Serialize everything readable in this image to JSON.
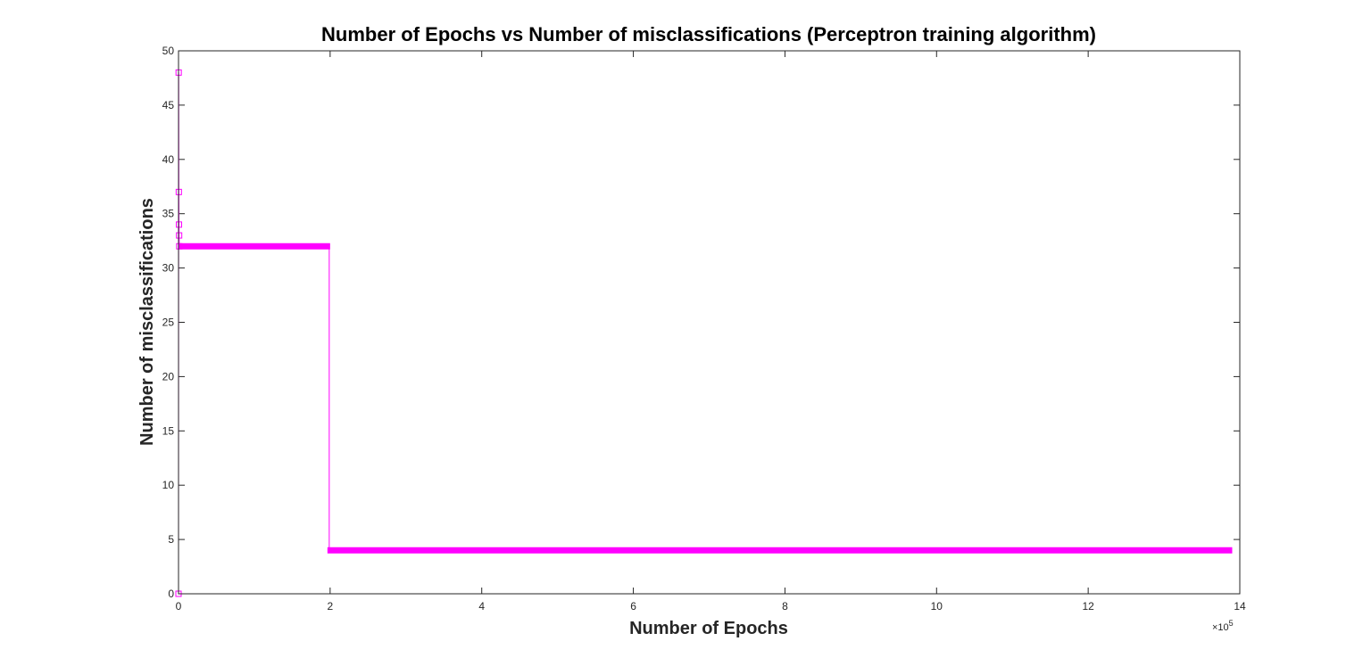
{
  "chart_data": {
    "type": "line",
    "title": "Number of Epochs vs Number of misclassifications (Perceptron training algorithm)",
    "xlabel": "Number of Epochs",
    "ylabel": "Number of misclassifications",
    "xlim": [
      0,
      1400000
    ],
    "ylim": [
      0,
      50
    ],
    "x_ticks": [
      0,
      2,
      4,
      6,
      8,
      10,
      12,
      14
    ],
    "x_tick_labels": [
      "0",
      "2",
      "4",
      "6",
      "8",
      "10",
      "12",
      "14"
    ],
    "x_exponent_label": "×10",
    "x_exponent_power": "5",
    "y_ticks": [
      0,
      5,
      10,
      15,
      20,
      25,
      30,
      35,
      40,
      45,
      50
    ],
    "y_tick_labels": [
      "0",
      "5",
      "10",
      "15",
      "20",
      "25",
      "30",
      "35",
      "40",
      "45",
      "50"
    ],
    "grid": false,
    "color": "#ff00ff",
    "series": [
      {
        "marker": "square",
        "segments": [
          {
            "x_start": 0,
            "x_end": 1000,
            "values": [
              0,
              48,
              37,
              34,
              33,
              32
            ]
          },
          {
            "x_start": 0,
            "x_end": 200000,
            "value": 32
          },
          {
            "x_start": 200000,
            "x_end": 1390000,
            "value": 4
          }
        ]
      }
    ]
  }
}
